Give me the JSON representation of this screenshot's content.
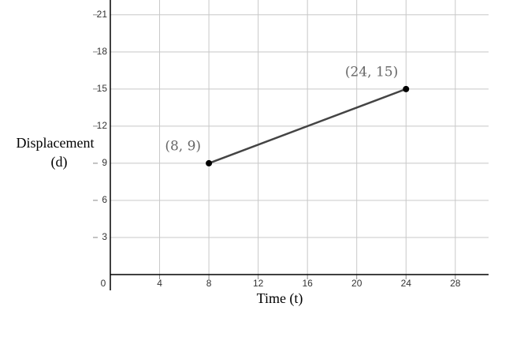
{
  "chart_data": {
    "type": "line",
    "xlabel": "Time (t)",
    "ylabel": [
      "Displacement",
      "(d)"
    ],
    "x": [
      8,
      24
    ],
    "series": [
      {
        "color": "#444444",
        "values": [
          9,
          15
        ],
        "value_labels": [
          "(8, 9)",
          "(24, 15)"
        ]
      }
    ],
    "xlim": [
      0,
      30.7
    ],
    "ylim": [
      0,
      22.2
    ],
    "xticks": [
      0,
      4,
      8,
      12,
      16,
      20,
      24,
      28
    ],
    "yticks": [
      3,
      6,
      9,
      12,
      15,
      18,
      21
    ],
    "grid": true
  }
}
